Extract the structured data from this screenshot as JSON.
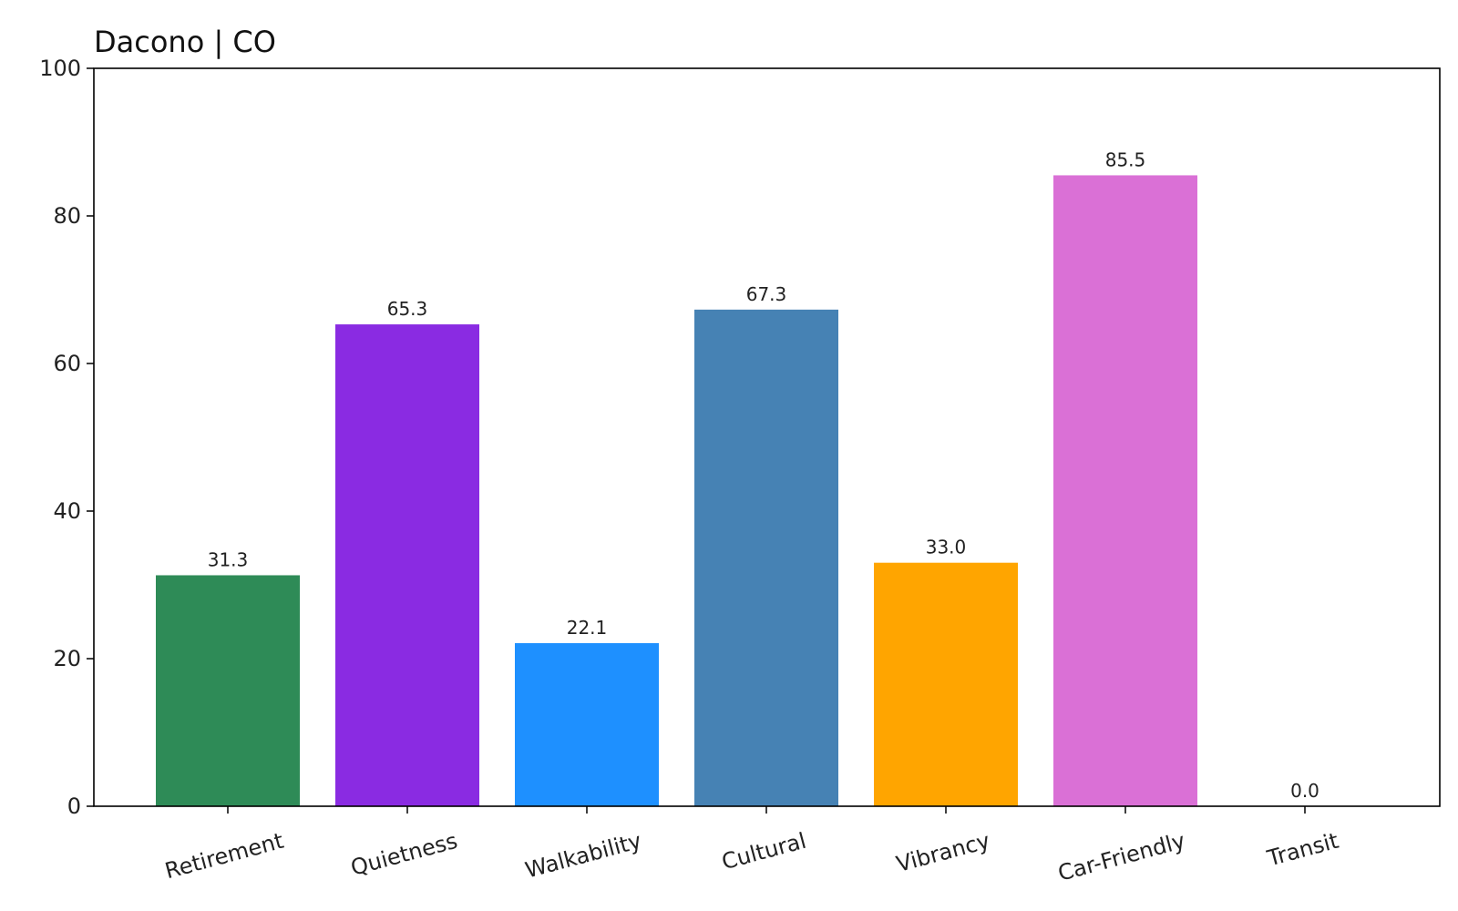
{
  "chart_data": {
    "type": "bar",
    "title": "Dacono | CO",
    "xlabel": "",
    "ylabel": "",
    "categories": [
      "Retirement",
      "Quietness",
      "Walkability",
      "Cultural",
      "Vibrancy",
      "Car-Friendly",
      "Transit"
    ],
    "values": [
      31.3,
      65.3,
      22.1,
      67.3,
      33.0,
      85.5,
      0.0
    ],
    "value_labels": [
      "31.3",
      "65.3",
      "22.1",
      "67.3",
      "33.0",
      "85.5",
      "0.0"
    ],
    "colors": [
      "#2e8b57",
      "#8a2be2",
      "#1e90ff",
      "#4682b4",
      "#ffa500",
      "#da70d6",
      "#708090"
    ],
    "ylim": [
      0,
      100
    ],
    "yticks": [
      0,
      20,
      40,
      60,
      80,
      100
    ],
    "ytick_labels": [
      "0",
      "20",
      "40",
      "60",
      "80",
      "100"
    ],
    "grid": false,
    "legend": "none"
  }
}
